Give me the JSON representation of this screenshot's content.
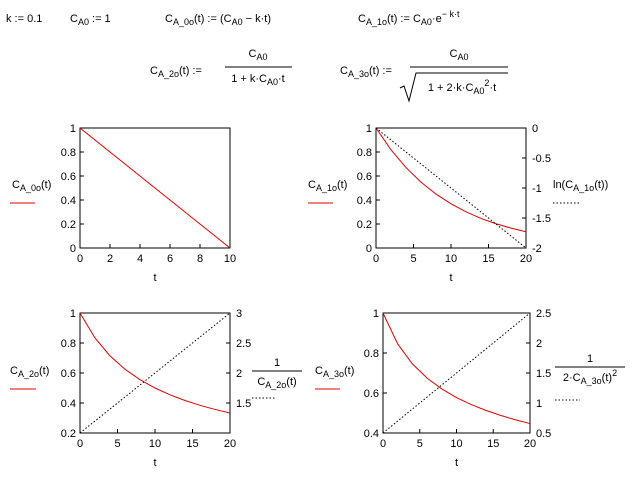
{
  "header": {
    "k_def": [
      "k := 0.1"
    ],
    "ca0_def": [
      "C",
      "A0",
      " := 1"
    ],
    "f0": [
      "C",
      "A_0o",
      "(t) := (C",
      "A0",
      " − k·t)"
    ],
    "f1": [
      "C",
      "A_1o",
      "(t) := C",
      "A0",
      "·e",
      "− k·t"
    ],
    "f2": {
      "lhs": [
        "C",
        "A_2o",
        "(t) :="
      ],
      "num": [
        "C",
        "A0"
      ],
      "den": [
        "1 + k·C",
        "A0",
        "·t"
      ]
    },
    "f3": {
      "lhs": [
        "C",
        "A_3o",
        "(t) :="
      ],
      "num": [
        "C",
        "A0"
      ],
      "den": [
        "1 + 2·k·C",
        "A0",
        "2",
        "·t"
      ]
    }
  },
  "chart_data": [
    {
      "type": "line",
      "xlabel": "t",
      "ylabel": [
        "C",
        "A_0o",
        "(t)"
      ],
      "x": [
        0,
        10
      ],
      "xlim": [
        0,
        10
      ],
      "xticks": [
        0,
        2,
        4,
        6,
        8,
        10
      ],
      "ylim": [
        0,
        1
      ],
      "yticks": [
        0,
        0.2,
        0.4,
        0.6,
        0.8,
        1
      ],
      "series": [
        {
          "color": "#e00000",
          "values": [
            1,
            0
          ]
        }
      ]
    },
    {
      "type": "line",
      "xlabel": "t",
      "ylabel": [
        "C",
        "A_1o",
        "(t)"
      ],
      "y2label": [
        "ln(C",
        "A_1o",
        "(t))"
      ],
      "x": [
        0,
        2,
        4,
        6,
        8,
        10,
        12,
        14,
        16,
        18,
        20
      ],
      "xlim": [
        0,
        20
      ],
      "xticks": [
        0,
        5,
        10,
        15,
        20
      ],
      "ylim": [
        0,
        1
      ],
      "yticks": [
        0,
        0.2,
        0.4,
        0.6,
        0.8,
        1
      ],
      "y2lim": [
        -2,
        0
      ],
      "y2ticks": [
        -2,
        -1.5,
        -1,
        -0.5,
        0
      ],
      "series": [
        {
          "color": "#e00000",
          "values": [
            1,
            0.8187,
            0.6703,
            0.5488,
            0.4493,
            0.3679,
            0.3012,
            0.2466,
            0.2019,
            0.1653,
            0.1353
          ]
        },
        {
          "color": "#000000",
          "style": "dotted",
          "axis": "y2",
          "values": [
            0,
            -0.2,
            -0.4,
            -0.6,
            -0.8,
            -1,
            -1.2,
            -1.4,
            -1.6,
            -1.8,
            -2
          ]
        }
      ]
    },
    {
      "type": "line",
      "xlabel": "t",
      "ylabel": [
        "C",
        "A_2o",
        "(t)"
      ],
      "y2label": {
        "num": [
          "1"
        ],
        "den": [
          "C",
          "A_2o",
          "(t)"
        ]
      },
      "x": [
        0,
        2,
        4,
        6,
        8,
        10,
        12,
        14,
        16,
        18,
        20
      ],
      "xlim": [
        0,
        20
      ],
      "xticks": [
        0,
        5,
        10,
        15,
        20
      ],
      "ylim": [
        0.2,
        1
      ],
      "yticks": [
        0.2,
        0.4,
        0.6,
        0.8,
        1
      ],
      "y2lim": [
        1,
        3
      ],
      "y2ticks": [
        1.5,
        2,
        2.5,
        3
      ],
      "series": [
        {
          "color": "#e00000",
          "values": [
            1,
            0.8333,
            0.7143,
            0.625,
            0.5556,
            0.5,
            0.4545,
            0.4167,
            0.3846,
            0.3571,
            0.3333
          ]
        },
        {
          "color": "#000000",
          "style": "dotted",
          "axis": "y2",
          "values": [
            1,
            1.2,
            1.4,
            1.6,
            1.8,
            2,
            2.2,
            2.4,
            2.6,
            2.8,
            3
          ]
        }
      ]
    },
    {
      "type": "line",
      "xlabel": "t",
      "ylabel": [
        "C",
        "A_3o",
        "(t)"
      ],
      "y2label": {
        "num": [
          "1"
        ],
        "den": [
          "2·C",
          "A_3o",
          "(t)",
          "2"
        ]
      },
      "x": [
        0,
        2,
        4,
        6,
        8,
        10,
        12,
        14,
        16,
        18,
        20
      ],
      "xlim": [
        0,
        20
      ],
      "xticks": [
        0,
        5,
        10,
        15,
        20
      ],
      "ylim": [
        0.4,
        1
      ],
      "yticks": [
        0.4,
        0.6,
        0.8,
        1
      ],
      "y2lim": [
        0.5,
        2.5
      ],
      "y2ticks": [
        0.5,
        1,
        1.5,
        2,
        2.5
      ],
      "series": [
        {
          "color": "#e00000",
          "values": [
            1,
            0.8452,
            0.7454,
            0.6742,
            0.6202,
            0.5774,
            0.5423,
            0.513,
            0.488,
            0.4663,
            0.4472
          ]
        },
        {
          "color": "#000000",
          "style": "dotted",
          "axis": "y2",
          "values": [
            0.5,
            0.7,
            0.9,
            1.1,
            1.3,
            1.5,
            1.7,
            1.9,
            2.1,
            2.3,
            2.5
          ]
        }
      ]
    }
  ]
}
